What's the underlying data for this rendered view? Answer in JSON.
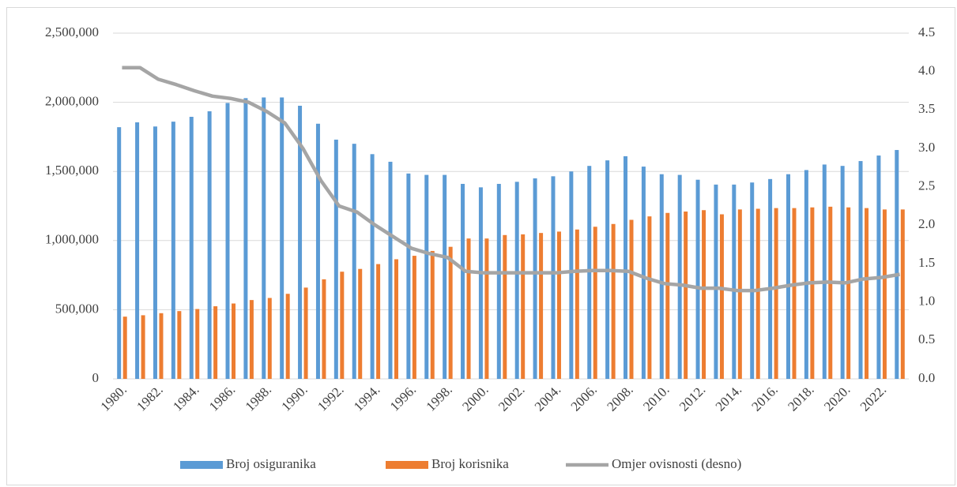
{
  "chart_data": {
    "type": "bar",
    "categories": [
      "1980.",
      null,
      "1982.",
      null,
      "1984.",
      null,
      "1986.",
      null,
      "1988.",
      null,
      "1990.",
      null,
      "1992.",
      null,
      "1994.",
      null,
      "1996.",
      null,
      "1998.",
      null,
      "2000.",
      null,
      "2002.",
      null,
      "2004.",
      null,
      "2006.",
      null,
      "2008.",
      null,
      "2010.",
      null,
      "2012.",
      null,
      "2014.",
      null,
      "2016.",
      null,
      "2018.",
      null,
      "2020.",
      null,
      "2022.",
      null
    ],
    "series": [
      {
        "name": "Broj osiguranika",
        "color": "#5b9bd5",
        "values": [
          1820000,
          1855000,
          1825000,
          1860000,
          1895000,
          1935000,
          1995000,
          2030000,
          2035000,
          2035000,
          1975000,
          1845000,
          1730000,
          1700000,
          1625000,
          1570000,
          1485000,
          1475000,
          1475000,
          1410000,
          1385000,
          1410000,
          1425000,
          1450000,
          1465000,
          1500000,
          1540000,
          1580000,
          1610000,
          1535000,
          1480000,
          1475000,
          1440000,
          1405000,
          1405000,
          1420000,
          1445000,
          1480000,
          1510000,
          1550000,
          1540000,
          1575000,
          1615000,
          1655000
        ]
      },
      {
        "name": "Broj korisnika",
        "color": "#ed7d31",
        "values": [
          450000,
          460000,
          475000,
          490000,
          505000,
          525000,
          545000,
          570000,
          585000,
          615000,
          660000,
          720000,
          775000,
          795000,
          830000,
          865000,
          890000,
          925000,
          955000,
          1015000,
          1015000,
          1040000,
          1045000,
          1055000,
          1065000,
          1080000,
          1100000,
          1120000,
          1150000,
          1175000,
          1200000,
          1210000,
          1220000,
          1190000,
          1225000,
          1230000,
          1235000,
          1235000,
          1240000,
          1245000,
          1240000,
          1235000,
          1225000,
          1225000
        ]
      },
      {
        "name": "Omjer ovisnosti (desno)",
        "color": "#a5a5a5",
        "axis": "y2",
        "type": "line",
        "values": [
          4.05,
          4.05,
          3.9,
          3.83,
          3.75,
          3.68,
          3.65,
          3.6,
          3.48,
          3.33,
          3.0,
          2.58,
          2.25,
          2.17,
          2.0,
          1.85,
          1.7,
          1.63,
          1.58,
          1.4,
          1.38,
          1.38,
          1.38,
          1.38,
          1.38,
          1.4,
          1.41,
          1.41,
          1.4,
          1.31,
          1.24,
          1.22,
          1.18,
          1.18,
          1.15,
          1.15,
          1.18,
          1.22,
          1.25,
          1.26,
          1.25,
          1.3,
          1.32,
          1.36
        ]
      }
    ],
    "ylim": [
      0,
      2500000
    ],
    "yticks": [
      0,
      {
        "value": 500000,
        "label": "500,000"
      },
      {
        "value": 1000000,
        "label": "1,000,000"
      },
      {
        "value": 1500000,
        "label": "1,500,000"
      },
      {
        "value": 2000000,
        "label": "2,000,000"
      },
      {
        "value": 2500000,
        "label": "2,500,000"
      }
    ],
    "y2lim": [
      0,
      4.5
    ],
    "y2ticks": [
      {
        "value": 0,
        "label": "0.0"
      },
      0.5,
      {
        "value": 1,
        "label": "1.0"
      },
      1.5,
      {
        "value": 2,
        "label": "2.0"
      },
      2.5,
      {
        "value": 3,
        "label": "3.0"
      },
      3.5,
      {
        "value": 4,
        "label": "4.0"
      },
      4.5
    ],
    "grid": true,
    "legend": "bottom"
  }
}
